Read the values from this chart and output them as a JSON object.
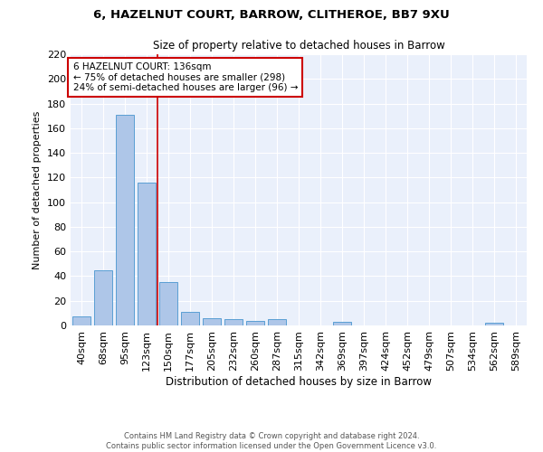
{
  "title": "6, HAZELNUT COURT, BARROW, CLITHEROE, BB7 9XU",
  "subtitle": "Size of property relative to detached houses in Barrow",
  "xlabel": "Distribution of detached houses by size in Barrow",
  "ylabel": "Number of detached properties",
  "categories": [
    "40sqm",
    "68sqm",
    "95sqm",
    "123sqm",
    "150sqm",
    "177sqm",
    "205sqm",
    "232sqm",
    "260sqm",
    "287sqm",
    "315sqm",
    "342sqm",
    "369sqm",
    "397sqm",
    "424sqm",
    "452sqm",
    "479sqm",
    "507sqm",
    "534sqm",
    "562sqm",
    "589sqm"
  ],
  "values": [
    7,
    45,
    171,
    116,
    35,
    11,
    6,
    5,
    4,
    5,
    0,
    0,
    3,
    0,
    0,
    0,
    0,
    0,
    0,
    2,
    0
  ],
  "bar_color": "#aec6e8",
  "bar_edge_color": "#5a9fd4",
  "vline_x": 3.5,
  "vline_color": "#cc0000",
  "annotation_line1": "6 HAZELNUT COURT: 136sqm",
  "annotation_line2": "← 75% of detached houses are smaller (298)",
  "annotation_line3": "24% of semi-detached houses are larger (96) →",
  "annotation_box_color": "#ffffff",
  "annotation_box_edge_color": "#cc0000",
  "ylim": [
    0,
    220
  ],
  "yticks": [
    0,
    20,
    40,
    60,
    80,
    100,
    120,
    140,
    160,
    180,
    200,
    220
  ],
  "bg_color": "#eaf0fb",
  "footer_line1": "Contains HM Land Registry data © Crown copyright and database right 2024.",
  "footer_line2": "Contains public sector information licensed under the Open Government Licence v3.0."
}
